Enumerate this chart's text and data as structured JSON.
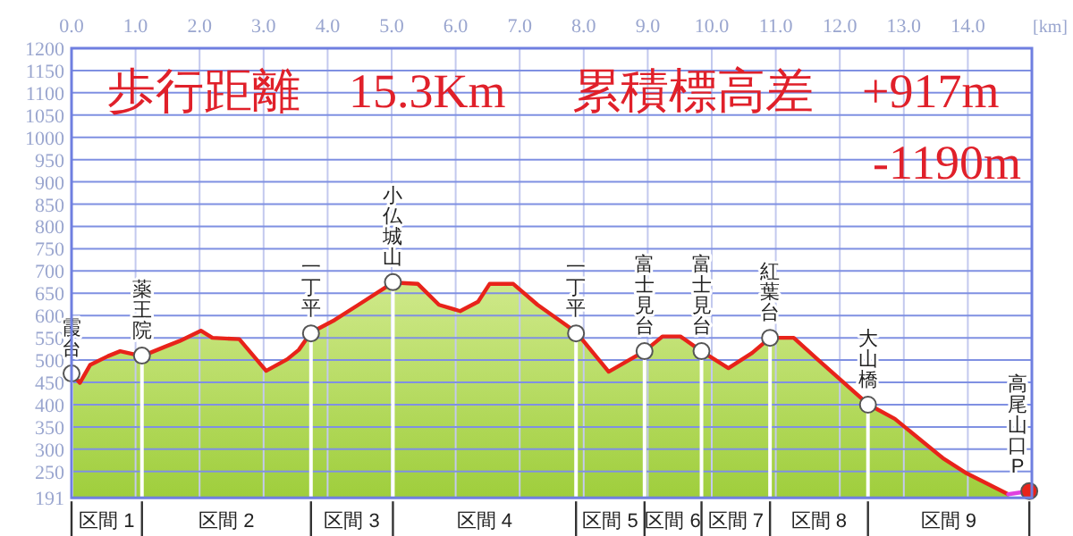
{
  "chart_data": {
    "type": "area",
    "xlabel": "[km]",
    "xlim": [
      0,
      15
    ],
    "ylim": [
      191,
      1200
    ],
    "xticks": [
      {
        "value": 0,
        "label": "0.0"
      },
      {
        "value": 1,
        "label": "1.0"
      },
      {
        "value": 2,
        "label": "2.0"
      },
      {
        "value": 3,
        "label": "3.0"
      },
      {
        "value": 4,
        "label": "4.0"
      },
      {
        "value": 5,
        "label": "5.0"
      },
      {
        "value": 6,
        "label": "6.0"
      },
      {
        "value": 7,
        "label": "7.0"
      },
      {
        "value": 8,
        "label": "8.0"
      },
      {
        "value": 9,
        "label": "9.0"
      },
      {
        "value": 10,
        "label": "10.0"
      },
      {
        "value": 11,
        "label": "11.0"
      },
      {
        "value": 12,
        "label": "12.0"
      },
      {
        "value": 13,
        "label": "13.0"
      },
      {
        "value": 14,
        "label": "14.0"
      }
    ],
    "yticks": [
      191,
      250,
      300,
      350,
      400,
      450,
      500,
      550,
      600,
      650,
      700,
      750,
      800,
      850,
      900,
      950,
      1000,
      1050,
      1100,
      1150,
      1200
    ],
    "grid": true,
    "series": [
      {
        "color": "#e8231a",
        "x": [
          0,
          0.13,
          0.29,
          0.57,
          0.76,
          1.1,
          1.46,
          1.69,
          2.02,
          2.2,
          2.62,
          3.04,
          3.37,
          3.55,
          3.74,
          4.11,
          4.48,
          5.02,
          5.41,
          5.74,
          6.07,
          6.35,
          6.53,
          6.9,
          7.28,
          7.88,
          8.39,
          8.95,
          9.23,
          9.51,
          9.84,
          10.26,
          10.63,
          10.91,
          11.28,
          11.65,
          12.44,
          12.86,
          13.61,
          13.98,
          14.63
        ],
        "values": [
          470,
          449,
          489,
          509,
          520,
          509,
          530,
          543,
          566,
          550,
          547,
          476,
          502,
          523,
          562,
          590,
          624,
          674,
          671,
          624,
          610,
          631,
          671,
          671,
          624,
          563,
          474,
          520,
          553,
          553,
          520,
          482,
          516,
          550,
          550,
          502,
          401,
          368,
          280,
          246,
          199
        ]
      },
      {
        "type": "line",
        "color": "#e040e0",
        "x": [
          14.63,
          14.96
        ],
        "values": [
          199,
          206
        ]
      },
      {
        "type": "scatter",
        "marker": "circle",
        "colors": [
          "#ffffff",
          "#ffffff",
          "#ffffff",
          "#ffffff",
          "#ffffff",
          "#ffffff",
          "#ffffff",
          "#ffffff",
          "#ffffff",
          "#e8231a"
        ],
        "x": [
          0,
          1.1,
          3.74,
          5.02,
          7.88,
          8.95,
          9.84,
          10.91,
          12.44,
          14.96
        ],
        "values": [
          470,
          510,
          560,
          675,
          560,
          520,
          520,
          550,
          400,
          206
        ]
      }
    ],
    "ref_lines": [
      {
        "axis": "x",
        "value": 0,
        "label": "霞台"
      },
      {
        "axis": "x",
        "value": 1.1,
        "label": "薬王院"
      },
      {
        "axis": "x",
        "value": 3.74,
        "label": "一丁平"
      },
      {
        "axis": "x",
        "value": 5.02,
        "label": "小仏城山"
      },
      {
        "axis": "x",
        "value": 7.88,
        "label": "一丁平"
      },
      {
        "axis": "x",
        "value": 8.95,
        "label": "富士見台"
      },
      {
        "axis": "x",
        "value": 9.84,
        "label": "富士見台"
      },
      {
        "axis": "x",
        "value": 10.91,
        "label": "紅葉台"
      },
      {
        "axis": "x",
        "value": 12.44,
        "label": "大山橋"
      },
      {
        "axis": "x",
        "value": 14.96,
        "label": "高尾山口P"
      }
    ],
    "annotations": [
      "歩行距離　15.3Km",
      "累積標高差　+917m",
      "-1190m",
      "区間 1",
      "区間 2",
      "区間 3",
      "区間 4",
      "区間 5",
      "区間 6",
      "区間 7",
      "区間 8",
      "区間 9"
    ]
  }
}
